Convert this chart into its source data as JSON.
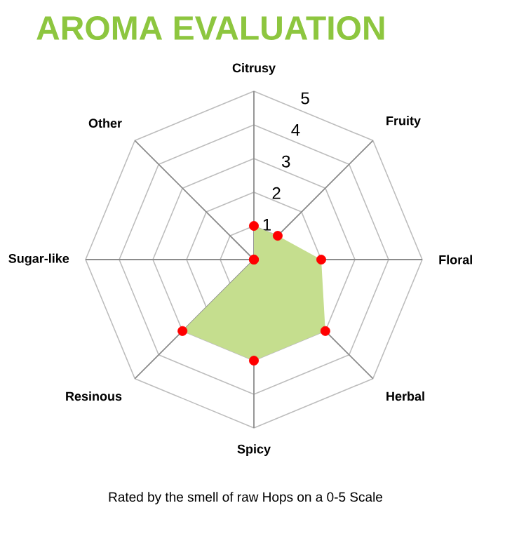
{
  "chart_data": {
    "type": "radar",
    "title": "AROMA EVALUATION",
    "categories": [
      "Citrusy",
      "Fruity",
      "Floral",
      "Herbal",
      "Spicy",
      "Resinous",
      "Sugar-like",
      "Other"
    ],
    "series": [
      {
        "color": "#c5de8e",
        "values": [
          1,
          1,
          2,
          3,
          3,
          3,
          0,
          0
        ]
      }
    ],
    "ylim": [
      0,
      5
    ],
    "yticks": [
      1,
      2,
      3,
      4,
      5
    ],
    "grid": true,
    "marker": "circle",
    "annotations": [
      "Rated by the smell of raw Hops on a 0-5 Scale"
    ]
  }
}
